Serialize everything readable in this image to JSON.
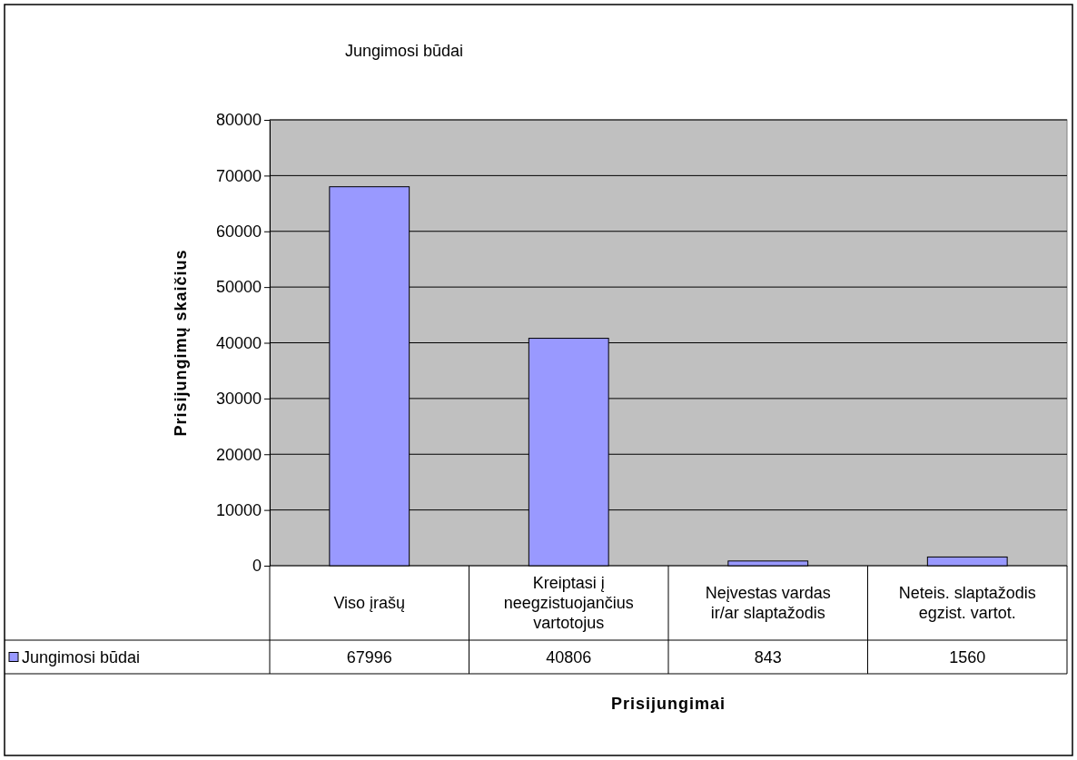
{
  "chart_data": {
    "type": "bar",
    "title": "Jungimosi būdai",
    "xlabel": "Prisijungimai",
    "ylabel": "Prisijungimų skaičius",
    "categories": [
      "Viso įrašų",
      "Kreiptasi į neegzistuojančius vartotojus",
      "Neįvestas vardas ir/ar slaptažodis",
      "Neteis. slaptažodis egzist. vartot."
    ],
    "series": [
      {
        "name": "Jungimosi būdai",
        "color": "#9999ff",
        "values": [
          67996,
          40806,
          843,
          1560
        ]
      }
    ],
    "ylim": [
      0,
      80000
    ],
    "yticks": [
      0,
      10000,
      20000,
      30000,
      40000,
      50000,
      60000,
      70000,
      80000
    ],
    "grid": "y",
    "legend": "bottom",
    "data_labels": true
  }
}
